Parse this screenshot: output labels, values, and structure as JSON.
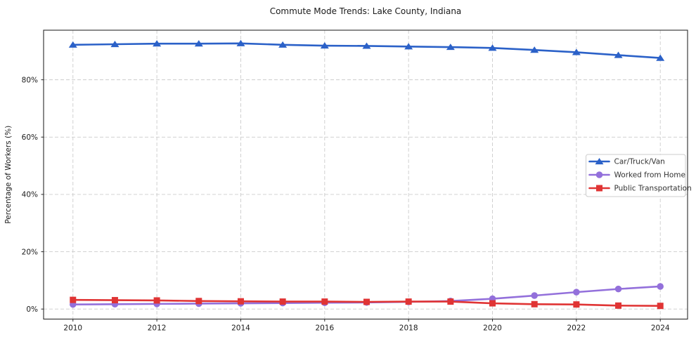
{
  "title": "Commute Mode Trends: Lake County, Indiana",
  "chart_data": {
    "type": "line",
    "title": "Commute Mode Trends: Lake County, Indiana",
    "xlabel": "",
    "ylabel": "Percentage of Workers (%)",
    "x": [
      2010,
      2011,
      2012,
      2013,
      2014,
      2015,
      2016,
      2017,
      2018,
      2019,
      2020,
      2021,
      2022,
      2023,
      2024
    ],
    "series": [
      {
        "name": "Car/Truck/Van",
        "color": "#2B61C8",
        "marker": "triangle",
        "values": [
          92.2,
          92.4,
          92.6,
          92.6,
          92.7,
          92.2,
          91.9,
          91.8,
          91.6,
          91.4,
          91.1,
          90.4,
          89.6,
          88.6,
          87.6
        ]
      },
      {
        "name": "Worked from Home",
        "color": "#9370DB",
        "marker": "circle",
        "values": [
          1.6,
          1.7,
          1.8,
          1.9,
          2.0,
          2.1,
          2.2,
          2.3,
          2.5,
          2.8,
          3.6,
          4.7,
          5.9,
          7.0,
          7.9
        ]
      },
      {
        "name": "Public Transportation",
        "color": "#E03434",
        "marker": "square",
        "values": [
          3.2,
          3.1,
          3.0,
          2.8,
          2.7,
          2.6,
          2.6,
          2.5,
          2.6,
          2.6,
          2.0,
          1.7,
          1.6,
          1.2,
          1.1
        ]
      }
    ],
    "xticks": [
      2010,
      2012,
      2014,
      2016,
      2018,
      2020,
      2022,
      2024
    ],
    "xtick_labels": [
      "2010",
      "2012",
      "2014",
      "2016",
      "2018",
      "2020",
      "2022",
      "2024"
    ],
    "yticks": [
      0,
      20,
      40,
      60,
      80
    ],
    "ytick_labels": [
      "0%",
      "20%",
      "40%",
      "60%",
      "80%"
    ],
    "xlim": [
      2009.3,
      2024.65
    ],
    "ylim": [
      -3.5,
      97.3
    ],
    "grid": true,
    "grid_color": "#cccccc",
    "spine_color": "#2b2b2b",
    "text_color": "#1a1a1a",
    "legend_position": "center-right",
    "legend_border_color": "#cccccc"
  }
}
